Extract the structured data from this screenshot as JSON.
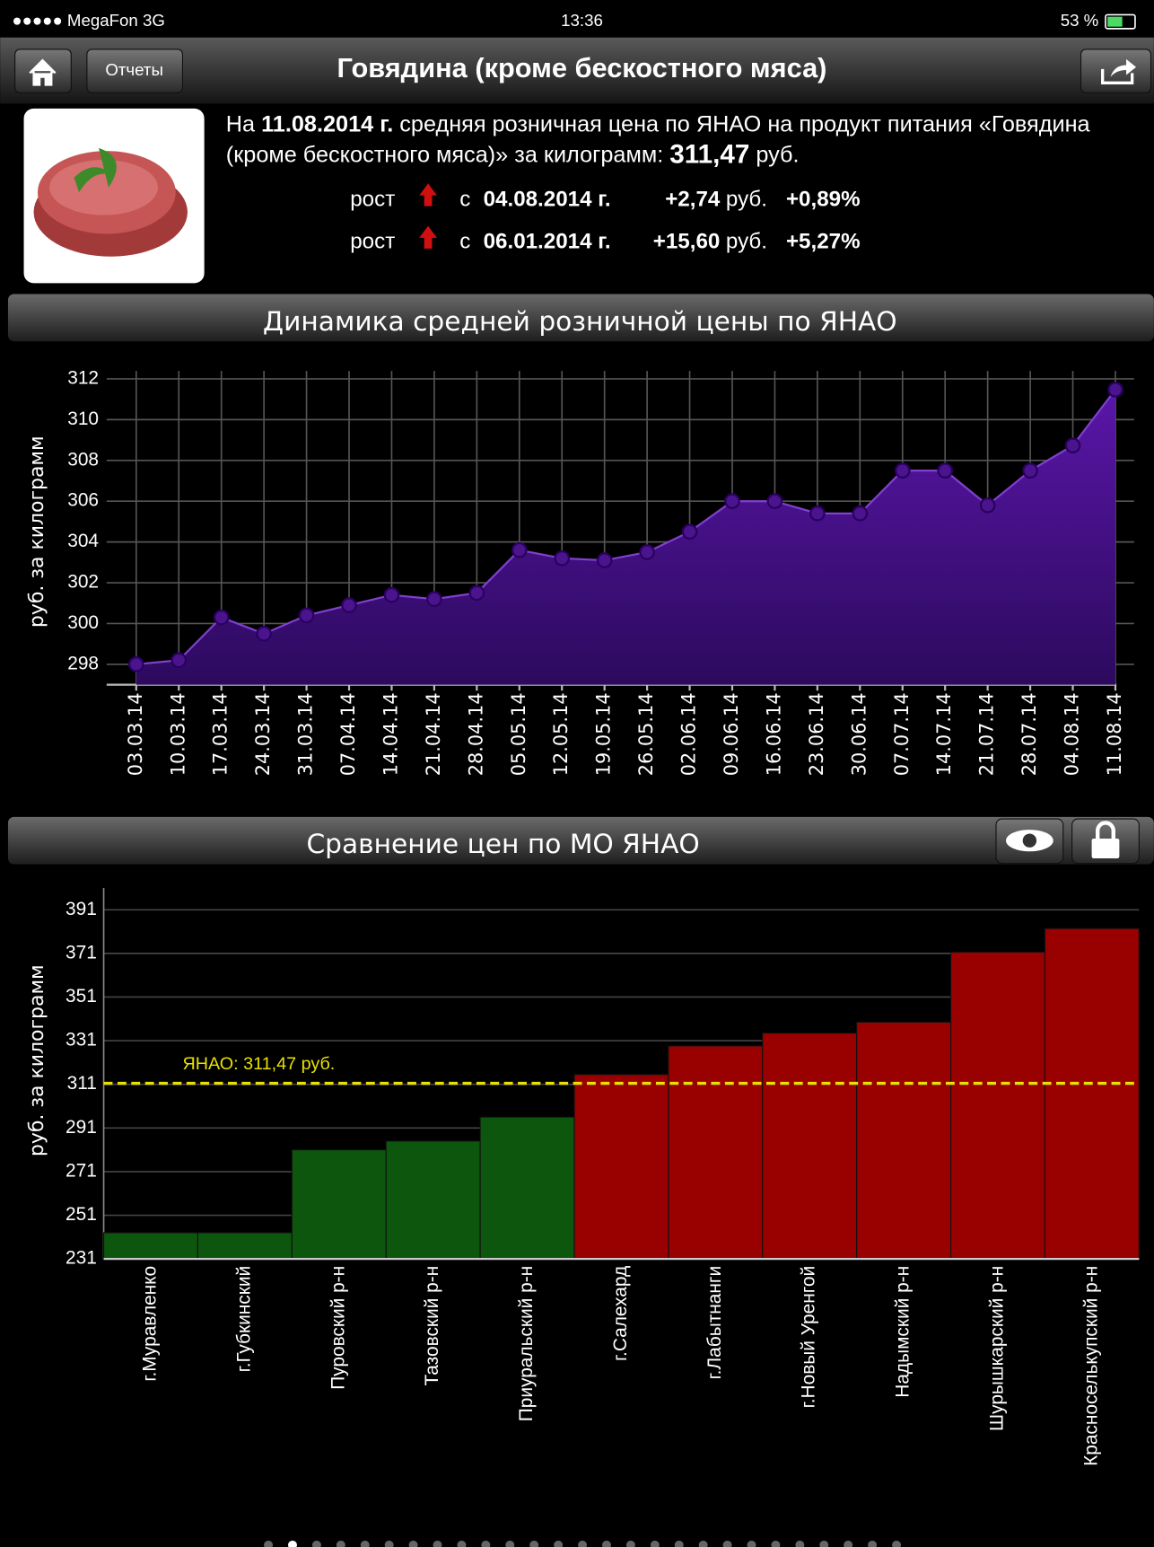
{
  "status_bar": {
    "carrier": "●●●●● MegaFon  3G",
    "time": "13:36",
    "battery": "53 %"
  },
  "nav": {
    "back_button": "Отчеты",
    "title": "Говядина (кроме бескостного мяса)"
  },
  "info": {
    "prefix": "На",
    "date": "11.08.2014 г.",
    "line1_rest": "средняя розничная цена по ЯНАО на продукт питания «Говядина",
    "line2": "(кроме бескостного мяса)» за килограмм:",
    "price": "311,47",
    "unit": "руб.",
    "changes": [
      {
        "label": "рост",
        "since": "с",
        "date": "04.08.2014 г.",
        "abs": "+2,74",
        "unit": "руб.",
        "pct": "+0,89%"
      },
      {
        "label": "рост",
        "since": "с",
        "date": "06.01.2014 г.",
        "abs": "+15,60",
        "unit": "руб.",
        "pct": "+5,27%"
      }
    ]
  },
  "chart_data": [
    {
      "type": "area",
      "title": "Динамика средней розничной цены по ЯНАО",
      "y_label": "руб. за килограмм",
      "categories": [
        "03.03.14",
        "10.03.14",
        "17.03.14",
        "24.03.14",
        "31.03.14",
        "07.04.14",
        "14.04.14",
        "21.04.14",
        "28.04.14",
        "05.05.14",
        "12.05.14",
        "19.05.14",
        "26.05.14",
        "02.06.14",
        "09.06.14",
        "16.06.14",
        "23.06.14",
        "30.06.14",
        "07.07.14",
        "14.07.14",
        "21.07.14",
        "28.07.14",
        "04.08.14",
        "11.08.14"
      ],
      "values": [
        298.0,
        298.2,
        300.3,
        299.5,
        300.4,
        300.9,
        301.4,
        301.2,
        301.5,
        303.6,
        303.2,
        303.1,
        303.5,
        304.5,
        306.0,
        306.0,
        305.4,
        305.4,
        307.5,
        307.5,
        305.8,
        307.5,
        308.73,
        311.47
      ],
      "color": "#4a148c",
      "ylim": [
        297,
        312
      ],
      "yticks": [
        298,
        300,
        302,
        304,
        306,
        308,
        310,
        312
      ],
      "grid": true
    },
    {
      "type": "bar",
      "title": "Сравнение цен по МО ЯНАО",
      "y_label": "руб. за килограмм",
      "categories": [
        "г.Муравленко",
        "г.Губкинский",
        "Пуровский р-н",
        "Тазовский р-н",
        "Приуральский р-н",
        "г.Салехард",
        "г.Лабытнанги",
        "г.Новый Уренгой",
        "Надымский р-н",
        "Шурышкарский р-н",
        "Красноселькупский р-н"
      ],
      "values": [
        243,
        243,
        281,
        285,
        296,
        315.5,
        328.6,
        334.5,
        339.5,
        371.6,
        382.4
      ],
      "reference": 311.47,
      "reference_label": "ЯНАО: 311,47 руб.",
      "reference_color": "#e8e000",
      "color_below": "#0d560d",
      "color_above": "#990000",
      "ylim": [
        231,
        401
      ],
      "yticks": [
        231,
        251,
        271,
        291,
        311,
        331,
        351,
        371,
        391
      ],
      "grid": true
    }
  ]
}
